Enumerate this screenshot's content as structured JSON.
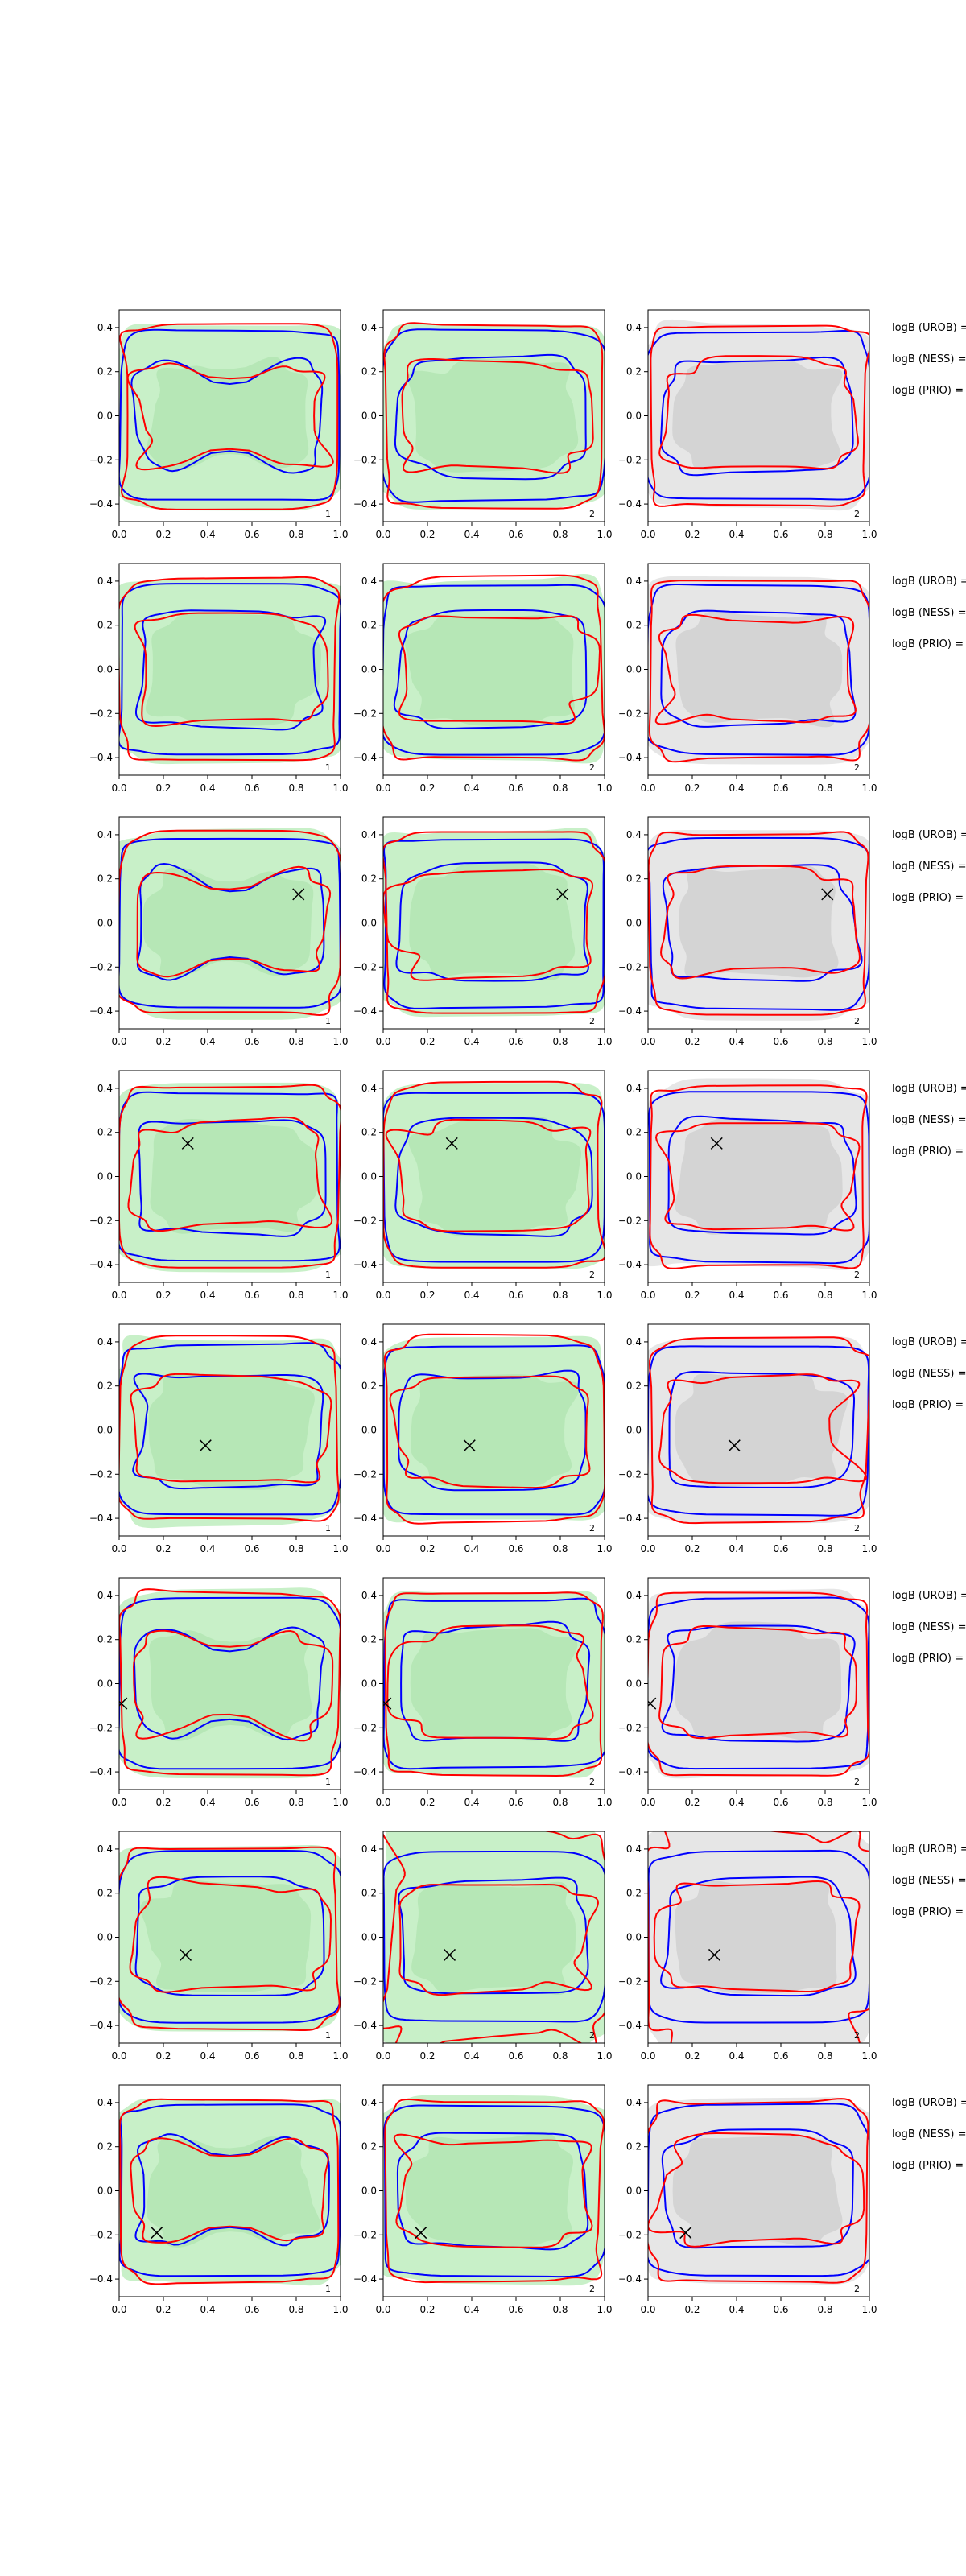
{
  "chart_data": {
    "type": "contour-grid",
    "nrows": 8,
    "ncols": 3,
    "xlim": [
      0.0,
      1.0
    ],
    "ylim": [
      -0.48,
      0.48
    ],
    "xticks": [
      0.0,
      0.2,
      0.4,
      0.6,
      0.8,
      1.0
    ],
    "xtick_labels": [
      "0.0",
      "0.2",
      "0.4",
      "0.6",
      "0.8",
      "1.0"
    ],
    "yticks": [
      0.4,
      0.2,
      0.0,
      -0.2,
      -0.4
    ],
    "ytick_labels": [
      "0.4",
      "0.2",
      "0.0",
      "−0.2",
      "−0.4"
    ],
    "panel_labels": [
      "1",
      "2",
      "2"
    ],
    "legend_lines": [
      "logB (UROB) =",
      "logB (NESS) =",
      "logB (PRIO) ="
    ],
    "colors": {
      "blue_contour": "#0000ff",
      "red_contour": "#ff0000",
      "green_fill": "#c8f0c8",
      "green_fill_inner": "#b4e6b4",
      "gray_fill": "#e6e6e6",
      "gray_fill_inner": "#d2d2d2",
      "marker": "#000000",
      "axis": "#000000"
    },
    "markers": [
      null,
      null,
      {
        "x": 0.81,
        "y": 0.13
      },
      {
        "x": 0.31,
        "y": 0.15
      },
      {
        "x": 0.39,
        "y": -0.07
      },
      {
        "x": 0.01,
        "y": -0.09
      },
      {
        "x": 0.3,
        "y": -0.08
      },
      {
        "x": 0.17,
        "y": -0.19
      }
    ],
    "row_shapes": [
      "two-lobe",
      "double-ring",
      "two-lobe-wide",
      "irregular",
      "double-ring",
      "two-lobe",
      "wide-spread",
      "two-lobe"
    ]
  }
}
